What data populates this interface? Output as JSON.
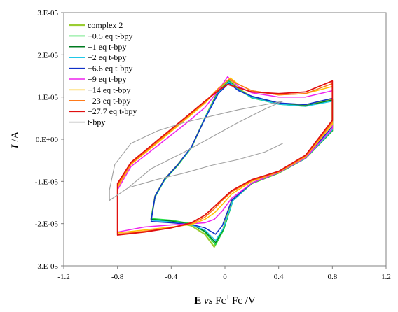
{
  "chart_data": {
    "type": "line",
    "xlabel": {
      "main": "E",
      "italic": "vs",
      "fc": "Fc",
      "sup": "+",
      "rest": "|Fc /V"
    },
    "ylabel": {
      "italic": "I",
      "rest": " /A"
    },
    "xlim": [
      -1.2,
      1.2
    ],
    "ylim": [
      -3e-05,
      3e-05
    ],
    "xticks": [
      {
        "v": -1.2,
        "label": "-1.2"
      },
      {
        "v": -0.8,
        "label": "-0.8"
      },
      {
        "v": -0.4,
        "label": "-0.4"
      },
      {
        "v": 0,
        "label": "0"
      },
      {
        "v": 0.4,
        "label": "0.4"
      },
      {
        "v": 0.8,
        "label": "0.8"
      },
      {
        "v": 1.2,
        "label": "1.2"
      }
    ],
    "yticks": [
      {
        "v": 3e-05,
        "label": "3.E-05"
      },
      {
        "v": 2e-05,
        "label": "2.E-05"
      },
      {
        "v": 1e-05,
        "label": "1.E-05"
      },
      {
        "v": 0,
        "label": "0.E+00"
      },
      {
        "v": -1e-05,
        "label": "-1.E-05"
      },
      {
        "v": -2e-05,
        "label": "-2.E-05"
      },
      {
        "v": -3e-05,
        "label": "-3.E-05"
      }
    ],
    "grid": false,
    "legend_position": "top-left",
    "series": [
      {
        "name": "complex 2",
        "color": "#9acd32",
        "width": 2.2,
        "points": [
          [
            -0.55,
            -1.9e-05
          ],
          [
            -0.4,
            -1.95e-05
          ],
          [
            -0.25,
            -2.05e-05
          ],
          [
            -0.15,
            -2.25e-05
          ],
          [
            -0.08,
            -2.55e-05
          ],
          [
            -0.02,
            -2.2e-05
          ],
          [
            0.05,
            -1.45e-05
          ],
          [
            0.2,
            -1.05e-05
          ],
          [
            0.4,
            -8e-06
          ],
          [
            0.6,
            -4.5e-06
          ],
          [
            0.8,
            2e-06
          ],
          [
            0.8,
            9.5e-06
          ],
          [
            0.6,
            8e-06
          ],
          [
            0.4,
            8.5e-06
          ],
          [
            0.2,
            1e-05
          ],
          [
            0.1,
            1.2e-05
          ],
          [
            0.03,
            1.4e-05
          ],
          [
            -0.05,
            1.15e-05
          ],
          [
            -0.15,
            5e-06
          ],
          [
            -0.25,
            -2e-06
          ],
          [
            -0.35,
            -6e-06
          ],
          [
            -0.45,
            -9.5e-06
          ],
          [
            -0.52,
            -1.35e-05
          ],
          [
            -0.55,
            -1.9e-05
          ]
        ]
      },
      {
        "name": "+0.5 eq t-bpy",
        "color": "#22dd44",
        "width": 1.6,
        "points": [
          [
            -0.55,
            -1.88e-05
          ],
          [
            -0.4,
            -1.92e-05
          ],
          [
            -0.25,
            -2e-05
          ],
          [
            -0.15,
            -2.2e-05
          ],
          [
            -0.07,
            -2.5e-05
          ],
          [
            -0.01,
            -2.15e-05
          ],
          [
            0.06,
            -1.45e-05
          ],
          [
            0.2,
            -1.05e-05
          ],
          [
            0.4,
            -8e-06
          ],
          [
            0.6,
            -4.5e-06
          ],
          [
            0.8,
            2e-06
          ],
          [
            0.8,
            9.2e-06
          ],
          [
            0.6,
            7.8e-06
          ],
          [
            0.4,
            8.3e-06
          ],
          [
            0.2,
            9.8e-06
          ],
          [
            0.1,
            1.18e-05
          ],
          [
            0.03,
            1.38e-05
          ],
          [
            -0.05,
            1.12e-05
          ],
          [
            -0.15,
            5e-06
          ],
          [
            -0.25,
            -2e-06
          ],
          [
            -0.35,
            -6.2e-06
          ],
          [
            -0.45,
            -9.7e-06
          ],
          [
            -0.52,
            -1.37e-05
          ],
          [
            -0.55,
            -1.88e-05
          ]
        ]
      },
      {
        "name": "+1 eq t-bpy",
        "color": "#007a20",
        "width": 1.4,
        "points": [
          [
            -0.55,
            -1.9e-05
          ],
          [
            -0.4,
            -1.94e-05
          ],
          [
            -0.25,
            -2.02e-05
          ],
          [
            -0.15,
            -2.18e-05
          ],
          [
            -0.07,
            -2.45e-05
          ],
          [
            -0.01,
            -2.12e-05
          ],
          [
            0.06,
            -1.45e-05
          ],
          [
            0.2,
            -1.04e-05
          ],
          [
            0.4,
            -7.9e-06
          ],
          [
            0.6,
            -4.5e-06
          ],
          [
            0.8,
            2.1e-06
          ],
          [
            0.8,
            9.3e-06
          ],
          [
            0.6,
            7.9e-06
          ],
          [
            0.4,
            8.4e-06
          ],
          [
            0.2,
            9.9e-06
          ],
          [
            0.1,
            1.18e-05
          ],
          [
            0.03,
            1.37e-05
          ],
          [
            -0.05,
            1.12e-05
          ],
          [
            -0.15,
            5e-06
          ],
          [
            -0.25,
            -2e-06
          ],
          [
            -0.35,
            -6e-06
          ],
          [
            -0.45,
            -9.6e-06
          ],
          [
            -0.52,
            -1.36e-05
          ],
          [
            -0.55,
            -1.9e-05
          ]
        ]
      },
      {
        "name": "+2 eq t-bpy",
        "color": "#20c8e8",
        "width": 1.4,
        "points": [
          [
            -0.55,
            -1.92e-05
          ],
          [
            -0.4,
            -1.96e-05
          ],
          [
            -0.25,
            -2.03e-05
          ],
          [
            -0.15,
            -2.15e-05
          ],
          [
            -0.07,
            -2.4e-05
          ],
          [
            -0.01,
            -2.1e-05
          ],
          [
            0.06,
            -1.45e-05
          ],
          [
            0.2,
            -1.04e-05
          ],
          [
            0.4,
            -7.9e-06
          ],
          [
            0.6,
            -4.5e-06
          ],
          [
            0.8,
            2.2e-06
          ],
          [
            0.8,
            9e-06
          ],
          [
            0.6,
            7.8e-06
          ],
          [
            0.4,
            8.3e-06
          ],
          [
            0.2,
            9.9e-06
          ],
          [
            0.1,
            1.17e-05
          ],
          [
            0.03,
            1.36e-05
          ],
          [
            -0.05,
            1.1e-05
          ],
          [
            -0.15,
            5e-06
          ],
          [
            -0.25,
            -2e-06
          ],
          [
            -0.35,
            -6e-06
          ],
          [
            -0.45,
            -9.6e-06
          ],
          [
            -0.52,
            -1.36e-05
          ],
          [
            -0.55,
            -1.92e-05
          ]
        ]
      },
      {
        "name": "+6.6 eq t-bpy",
        "color": "#1030c8",
        "width": 1.5,
        "points": [
          [
            -0.55,
            -1.95e-05
          ],
          [
            -0.4,
            -1.98e-05
          ],
          [
            -0.25,
            -2.02e-05
          ],
          [
            -0.15,
            -2.1e-05
          ],
          [
            -0.07,
            -2.25e-05
          ],
          [
            -0.02,
            -2.05e-05
          ],
          [
            0.05,
            -1.45e-05
          ],
          [
            0.2,
            -1.04e-05
          ],
          [
            0.4,
            -7.9e-06
          ],
          [
            0.6,
            -4.4e-06
          ],
          [
            0.8,
            3e-06
          ],
          [
            0.8,
            9.7e-06
          ],
          [
            0.6,
            8.2e-06
          ],
          [
            0.4,
            8.6e-06
          ],
          [
            0.2,
            1.02e-05
          ],
          [
            0.1,
            1.15e-05
          ],
          [
            0.03,
            1.33e-05
          ],
          [
            -0.05,
            1.08e-05
          ],
          [
            -0.15,
            4.8e-06
          ],
          [
            -0.25,
            -1.8e-06
          ],
          [
            -0.35,
            -6e-06
          ],
          [
            -0.45,
            -9.5e-06
          ],
          [
            -0.52,
            -1.35e-05
          ],
          [
            -0.55,
            -1.95e-05
          ]
        ]
      },
      {
        "name": "+9 eq t-bpy",
        "color": "#ee22ee",
        "width": 1.5,
        "points": [
          [
            -0.8,
            -2.2e-05
          ],
          [
            -0.6,
            -2.08e-05
          ],
          [
            -0.4,
            -2.03e-05
          ],
          [
            -0.25,
            -2e-05
          ],
          [
            -0.15,
            -1.98e-05
          ],
          [
            -0.08,
            -1.9e-05
          ],
          [
            -0.02,
            -1.7e-05
          ],
          [
            0.05,
            -1.4e-05
          ],
          [
            0.2,
            -1.04e-05
          ],
          [
            0.4,
            -7.9e-06
          ],
          [
            0.6,
            -4.4e-06
          ],
          [
            0.8,
            2.5e-06
          ],
          [
            0.8,
            1.15e-05
          ],
          [
            0.6,
            1e-05
          ],
          [
            0.4,
            1e-05
          ],
          [
            0.2,
            1.1e-05
          ],
          [
            0.1,
            1.25e-05
          ],
          [
            0.02,
            1.48e-05
          ],
          [
            -0.05,
            1.15e-05
          ],
          [
            -0.15,
            7.5e-06
          ],
          [
            -0.3,
            3.5e-06
          ],
          [
            -0.5,
            -1.5e-06
          ],
          [
            -0.7,
            -6.5e-06
          ],
          [
            -0.8,
            -1.2e-05
          ],
          [
            -0.8,
            -2.2e-05
          ]
        ]
      },
      {
        "name": "+14 eq t-bpy",
        "color": "#ffc000",
        "width": 1.5,
        "points": [
          [
            -0.8,
            -2.22e-05
          ],
          [
            -0.6,
            -2.15e-05
          ],
          [
            -0.4,
            -2.08e-05
          ],
          [
            -0.25,
            -2.02e-05
          ],
          [
            -0.15,
            -1.9e-05
          ],
          [
            -0.08,
            -1.75e-05
          ],
          [
            -0.02,
            -1.55e-05
          ],
          [
            0.05,
            -1.3e-05
          ],
          [
            0.2,
            -1e-05
          ],
          [
            0.4,
            -7.8e-06
          ],
          [
            0.6,
            -4.2e-06
          ],
          [
            0.8,
            3.5e-06
          ],
          [
            0.8,
            1.25e-05
          ],
          [
            0.6,
            1.08e-05
          ],
          [
            0.4,
            1.05e-05
          ],
          [
            0.2,
            1.15e-05
          ],
          [
            0.1,
            1.3e-05
          ],
          [
            0.04,
            1.45e-05
          ],
          [
            -0.05,
            1.2e-05
          ],
          [
            -0.15,
            8.5e-06
          ],
          [
            -0.3,
            4.5e-06
          ],
          [
            -0.5,
            -8e-07
          ],
          [
            -0.7,
            -6e-06
          ],
          [
            -0.8,
            -1.15e-05
          ],
          [
            -0.8,
            -2.22e-05
          ]
        ]
      },
      {
        "name": "+23 eq t-bpy",
        "color": "#ff7a1a",
        "width": 1.5,
        "points": [
          [
            -0.8,
            -2.25e-05
          ],
          [
            -0.6,
            -2.18e-05
          ],
          [
            -0.4,
            -2.1e-05
          ],
          [
            -0.25,
            -2e-05
          ],
          [
            -0.15,
            -1.85e-05
          ],
          [
            -0.08,
            -1.65e-05
          ],
          [
            -0.02,
            -1.45e-05
          ],
          [
            0.05,
            -1.25e-05
          ],
          [
            0.2,
            -9.8e-06
          ],
          [
            0.4,
            -7.7e-06
          ],
          [
            0.6,
            -4e-06
          ],
          [
            0.8,
            4e-06
          ],
          [
            0.8,
            1.32e-05
          ],
          [
            0.6,
            1.08e-05
          ],
          [
            0.4,
            1.05e-05
          ],
          [
            0.2,
            1.15e-05
          ],
          [
            0.1,
            1.3e-05
          ],
          [
            0.03,
            1.42e-05
          ],
          [
            -0.05,
            1.2e-05
          ],
          [
            -0.15,
            8.8e-06
          ],
          [
            -0.3,
            4.8e-06
          ],
          [
            -0.5,
            -5e-07
          ],
          [
            -0.7,
            -5.8e-06
          ],
          [
            -0.8,
            -1.1e-05
          ],
          [
            -0.8,
            -2.25e-05
          ]
        ]
      },
      {
        "name": "+27.7 eq t-bpy",
        "color": "#e01010",
        "width": 1.8,
        "points": [
          [
            -0.8,
            -2.27e-05
          ],
          [
            -0.6,
            -2.2e-05
          ],
          [
            -0.4,
            -2.1e-05
          ],
          [
            -0.25,
            -1.98e-05
          ],
          [
            -0.15,
            -1.8e-05
          ],
          [
            -0.08,
            -1.6e-05
          ],
          [
            -0.02,
            -1.42e-05
          ],
          [
            0.05,
            -1.22e-05
          ],
          [
            0.2,
            -9.6e-06
          ],
          [
            0.4,
            -7.6e-06
          ],
          [
            0.6,
            -3.8e-06
          ],
          [
            0.8,
            4.5e-06
          ],
          [
            0.8,
            1.38e-05
          ],
          [
            0.6,
            1.12e-05
          ],
          [
            0.4,
            1.08e-05
          ],
          [
            0.2,
            1.12e-05
          ],
          [
            0.1,
            1.22e-05
          ],
          [
            0.02,
            1.3e-05
          ],
          [
            -0.05,
            1.15e-05
          ],
          [
            -0.15,
            9e-06
          ],
          [
            -0.3,
            5e-06
          ],
          [
            -0.5,
            -2e-07
          ],
          [
            -0.7,
            -5.5e-06
          ],
          [
            -0.8,
            -1.05e-05
          ],
          [
            -0.8,
            -2.27e-05
          ]
        ]
      },
      {
        "name": "t-bpy",
        "color": "#a0a0a0",
        "width": 1.1,
        "points": [
          [
            -0.55,
            -7e-06
          ],
          [
            -0.72,
            -1.15e-05
          ],
          [
            -0.86,
            -1.45e-05
          ],
          [
            -0.86,
            -1.2e-05
          ],
          [
            -0.82,
            -6e-06
          ],
          [
            -0.7,
            -1e-06
          ],
          [
            -0.5,
            2e-06
          ],
          [
            -0.3,
            4e-06
          ],
          [
            -0.1,
            5.5e-06
          ],
          [
            0.1,
            7e-06
          ],
          [
            0.3,
            8.2e-06
          ],
          [
            0.43,
            9e-06
          ],
          [
            0.3,
            7.2e-06
          ],
          [
            0.1,
            4e-06
          ],
          [
            -0.1,
            5e-07
          ],
          [
            -0.3,
            -3e-06
          ],
          [
            -0.55,
            -7e-06
          ]
        ]
      },
      {
        "name": "",
        "color": "#a0a0a0",
        "width": 1.1,
        "points": [
          [
            -0.72,
            -1.15e-05
          ],
          [
            -0.5,
            -9.5e-06
          ],
          [
            -0.3,
            -8e-06
          ],
          [
            -0.1,
            -6.2e-06
          ],
          [
            0.1,
            -4.8e-06
          ],
          [
            0.3,
            -3e-06
          ],
          [
            0.43,
            -1e-06
          ]
        ]
      }
    ]
  }
}
